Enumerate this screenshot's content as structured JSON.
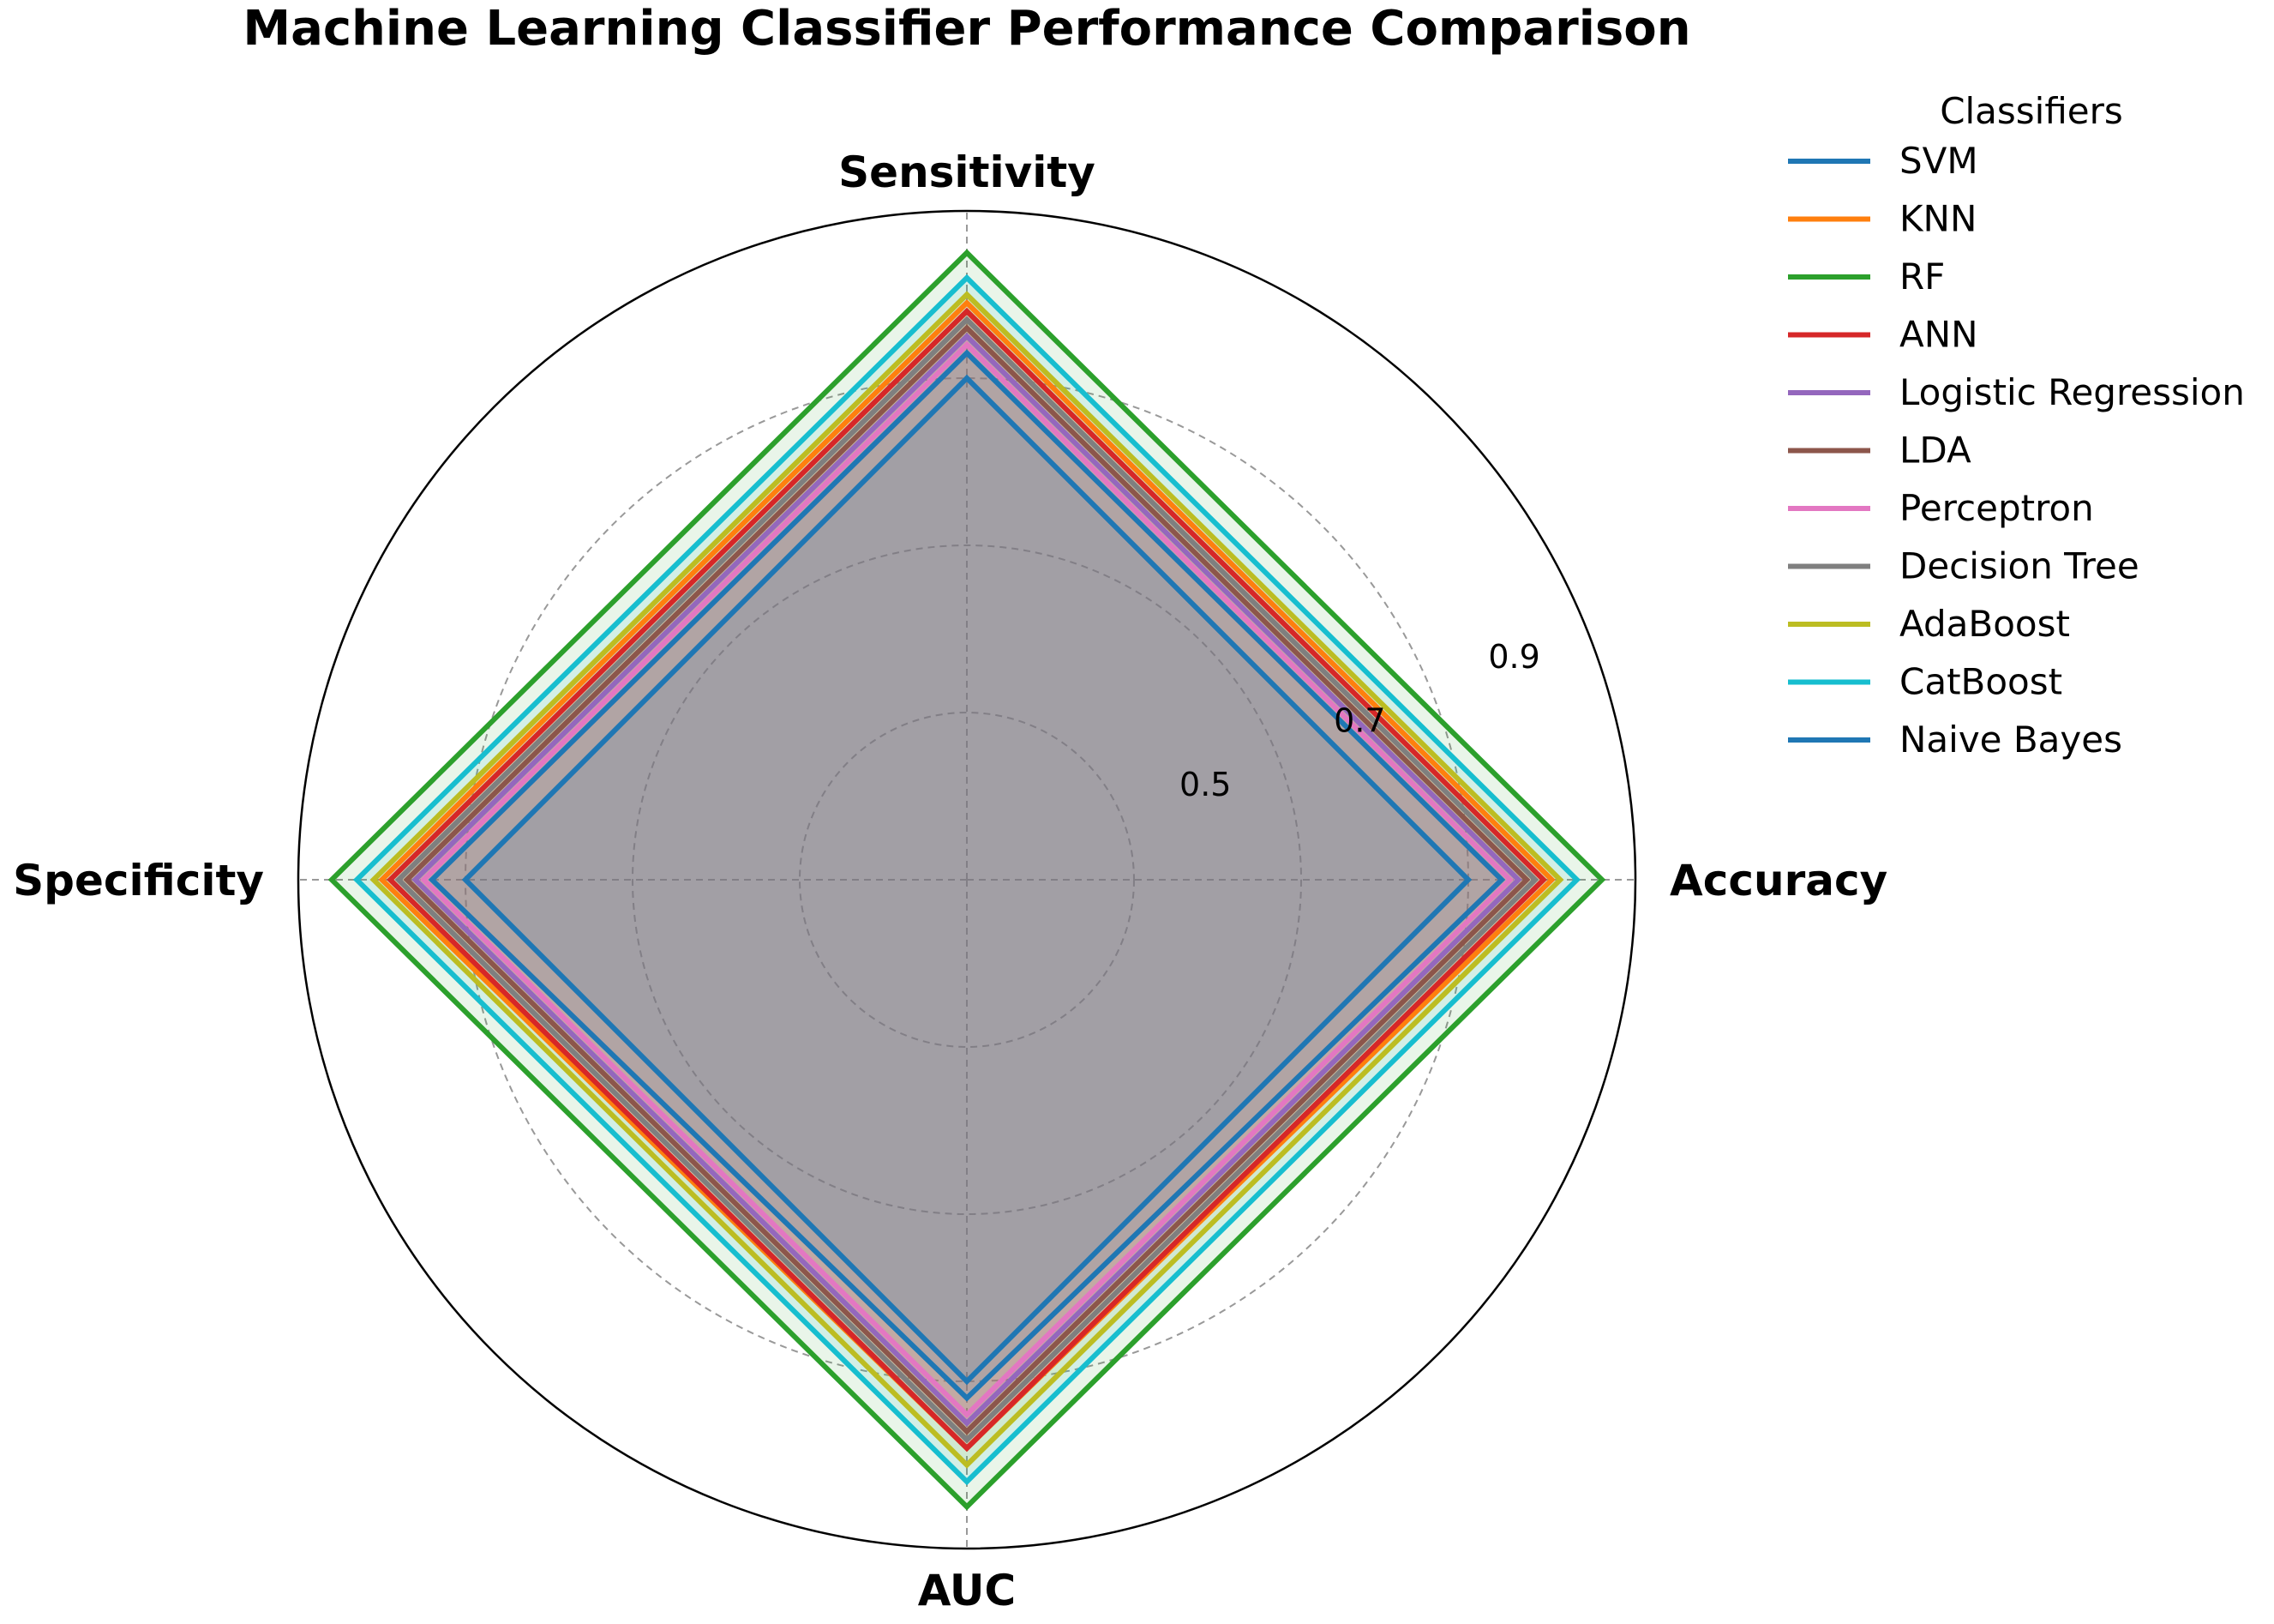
{
  "chart_data": {
    "type": "radar",
    "title": "Machine Learning Classifier Performance Comparison",
    "axes": [
      "Accuracy",
      "Sensitivity",
      "Specificity",
      "AUC"
    ],
    "rlim": [
      0.2,
      1.0
    ],
    "rticks": [
      "0.5",
      "0.7",
      "0.9"
    ],
    "rtick_values": [
      0.5,
      0.7,
      0.9
    ],
    "grid": true,
    "legend_title": "Classifiers",
    "legend_position": "right",
    "series": [
      {
        "name": "SVM",
        "color": "#1f77b4",
        "values": [
          0.84,
          0.83,
          0.84,
          0.82
        ]
      },
      {
        "name": "KNN",
        "color": "#ff7f0e",
        "values": [
          0.9,
          0.89,
          0.9,
          0.88
        ]
      },
      {
        "name": "RF",
        "color": "#2ca02c",
        "values": [
          0.96,
          0.95,
          0.96,
          0.95
        ]
      },
      {
        "name": "ANN",
        "color": "#d62728",
        "values": [
          0.89,
          0.88,
          0.89,
          0.88
        ]
      },
      {
        "name": "Logistic Regression",
        "color": "#9467bd",
        "values": [
          0.86,
          0.85,
          0.86,
          0.85
        ]
      },
      {
        "name": "LDA",
        "color": "#8c564b",
        "values": [
          0.87,
          0.86,
          0.87,
          0.86
        ]
      },
      {
        "name": "Perceptron",
        "color": "#e377c2",
        "values": [
          0.85,
          0.84,
          0.85,
          0.84
        ]
      },
      {
        "name": "Decision Tree",
        "color": "#7f7f7f",
        "values": [
          0.88,
          0.87,
          0.88,
          0.87
        ]
      },
      {
        "name": "AdaBoost",
        "color": "#bcbd22",
        "values": [
          0.91,
          0.9,
          0.91,
          0.9
        ]
      },
      {
        "name": "CatBoost",
        "color": "#17becf",
        "values": [
          0.93,
          0.92,
          0.93,
          0.92
        ]
      },
      {
        "name": "Naive Bayes",
        "color": "#1f77b4",
        "values": [
          0.8,
          0.8,
          0.8,
          0.8
        ]
      }
    ]
  }
}
